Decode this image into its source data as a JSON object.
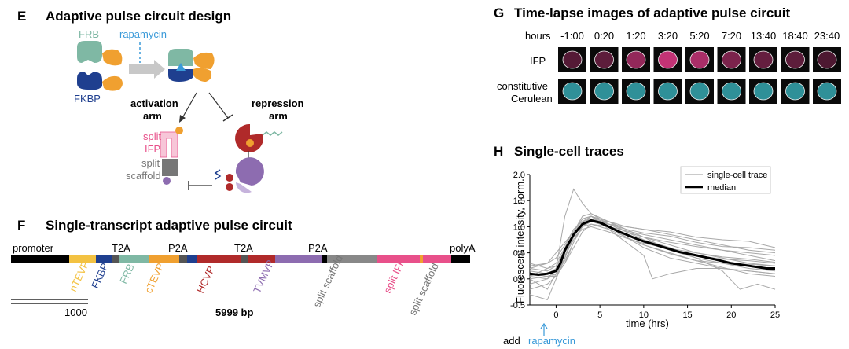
{
  "panelE": {
    "letter": "E",
    "title": "Adaptive pulse circuit design",
    "frb": "FRB",
    "fkbp": "FKBP",
    "rapamycin": "rapamycin",
    "activation_arm_1": "activation",
    "activation_arm_2": "arm",
    "repression_arm_1": "repression",
    "repression_arm_2": "arm",
    "split_ifp_1": "split",
    "split_ifp_2": "IFP",
    "split_scaffold_1": "split",
    "split_scaffold_2": "scaffold",
    "colors": {
      "frb": "#7fb8a4",
      "fkbp": "#1f3f8f",
      "rapamycin": "#3a9ad9",
      "tev": "#f0a030",
      "ifp": "#e8508a",
      "hcv": "#b02a2a",
      "tvmv": "#8d6cb0",
      "scaffold": "#777777"
    }
  },
  "panelF": {
    "letter": "F",
    "title": "Single-transcript adaptive pulse circuit",
    "promoter": "promoter",
    "polyA": "polyA",
    "t2a_1": "T2A",
    "p2a_1": "P2A",
    "t2a_2": "T2A",
    "p2a_2": "P2A",
    "labels": {
      "ntevp": "nTEVP",
      "fkbp": "FKBP",
      "frb": "FRB",
      "ctevp": "cTEVP",
      "hcvp": "HCVP",
      "tvmvp": "TVMVP",
      "split_scaffold_1": "split scaffold",
      "split_ifp": "split IFP",
      "split_scaffold_2": "split scaffold"
    },
    "scale_bar": "1000",
    "length": "5999 bp"
  },
  "panelG": {
    "letter": "G",
    "title": "Time-lapse images of adaptive pulse circuit",
    "hours_label": "hours",
    "timepoints": [
      "-1:00",
      "0:20",
      "1:20",
      "3:20",
      "5:20",
      "7:20",
      "13:40",
      "18:40",
      "23:40"
    ],
    "ifp_intensity": [
      0.2,
      0.25,
      0.6,
      0.9,
      0.75,
      0.45,
      0.3,
      0.25,
      0.15
    ],
    "row_ifp": "IFP",
    "row_cerulean_1": "constitutive",
    "row_cerulean_2": "Cerulean"
  },
  "panelH": {
    "letter": "H",
    "title": "Single-cell traces",
    "chart_data": {
      "type": "line",
      "title": "Single-cell traces",
      "xlabel": "time (hrs)",
      "ylabel": "Fluorescent intensity, norm.",
      "xlim": [
        -3,
        25
      ],
      "ylim": [
        -0.5,
        2.0
      ],
      "xticks": [
        "0",
        "5",
        "10",
        "15",
        "20",
        "25"
      ],
      "xtick_values": [
        0,
        5,
        10,
        15,
        20,
        25
      ],
      "yticks": [
        "-0.5",
        "0.0",
        "0.5",
        "1.0",
        "1.5",
        "2.0"
      ],
      "ytick_values": [
        -0.5,
        0.0,
        0.5,
        1.0,
        1.5,
        2.0
      ],
      "legend": {
        "trace": "single-cell trace",
        "median": "median",
        "placement": "top-right"
      },
      "annotation_1": "add",
      "annotation_2": "rapamycin",
      "median": {
        "x": [
          -3,
          -2,
          -1,
          0,
          0.5,
          1,
          2,
          3,
          4,
          5,
          6,
          7,
          8,
          9,
          10,
          12,
          14,
          16,
          18,
          20,
          22,
          24,
          25
        ],
        "y": [
          0.1,
          0.08,
          0.1,
          0.15,
          0.3,
          0.55,
          0.85,
          1.05,
          1.12,
          1.08,
          1.0,
          0.92,
          0.85,
          0.78,
          0.72,
          0.62,
          0.52,
          0.45,
          0.38,
          0.3,
          0.25,
          0.2,
          0.2
        ]
      },
      "traces": [
        {
          "x": [
            -3,
            -1,
            0,
            1,
            2,
            3,
            4,
            6,
            8,
            10,
            13,
            16,
            19,
            22,
            25
          ],
          "y": [
            0.05,
            0.0,
            0.2,
            1.2,
            1.72,
            1.45,
            1.25,
            1.05,
            0.9,
            0.8,
            0.65,
            0.5,
            0.4,
            0.3,
            0.25
          ]
        },
        {
          "x": [
            -3,
            -1,
            0,
            1,
            2,
            3,
            4,
            6,
            8,
            10,
            13,
            16,
            19,
            22,
            25
          ],
          "y": [
            0.2,
            0.3,
            0.5,
            0.7,
            0.9,
            1.05,
            1.1,
            1.0,
            0.92,
            0.85,
            0.75,
            0.65,
            0.55,
            0.45,
            0.35
          ]
        },
        {
          "x": [
            -3,
            -1,
            0,
            1,
            2,
            3,
            4,
            6,
            8,
            10,
            13,
            16,
            19,
            22,
            25
          ],
          "y": [
            -0.1,
            0.0,
            0.1,
            0.4,
            0.8,
            1.1,
            1.2,
            1.05,
            0.95,
            0.88,
            0.82,
            0.7,
            0.62,
            0.6,
            0.55
          ]
        },
        {
          "x": [
            -3,
            -1,
            0,
            1,
            2,
            3,
            4,
            6,
            8,
            10,
            13,
            16,
            19,
            22,
            25
          ],
          "y": [
            0.0,
            -0.2,
            0.1,
            0.3,
            0.7,
            1.0,
            1.15,
            1.0,
            0.8,
            0.6,
            0.4,
            0.3,
            0.2,
            0.15,
            0.1
          ]
        },
        {
          "x": [
            -3,
            -1,
            0,
            1,
            2,
            3,
            4,
            6,
            8,
            10,
            11,
            13,
            16,
            19,
            22,
            25
          ],
          "y": [
            0.1,
            0.1,
            0.2,
            0.5,
            0.9,
            1.15,
            1.2,
            0.95,
            0.7,
            0.45,
            0.0,
            0.1,
            0.2,
            0.2,
            0.15,
            0.1
          ]
        },
        {
          "x": [
            -3,
            -1,
            0,
            1,
            2,
            3,
            4,
            6,
            8,
            10,
            13,
            16,
            19,
            22,
            25
          ],
          "y": [
            0.3,
            0.2,
            0.3,
            0.6,
            0.95,
            1.1,
            1.12,
            1.1,
            1.0,
            0.95,
            0.9,
            0.8,
            0.75,
            0.72,
            0.6
          ]
        },
        {
          "x": [
            -3,
            -1,
            0,
            1,
            2,
            3,
            4,
            6,
            8,
            10,
            13,
            16,
            19,
            22,
            25
          ],
          "y": [
            0.1,
            0.05,
            0.05,
            0.3,
            0.6,
            0.9,
            1.05,
            1.0,
            0.85,
            0.7,
            0.55,
            0.45,
            0.38,
            0.35,
            0.3
          ]
        },
        {
          "x": [
            -3,
            -1,
            0,
            1,
            2,
            3,
            4,
            6,
            8,
            10,
            13,
            16,
            19,
            21,
            23,
            25
          ],
          "y": [
            -0.3,
            -0.4,
            0.0,
            0.4,
            0.9,
            1.2,
            1.25,
            1.1,
            0.9,
            0.75,
            0.6,
            0.4,
            0.15,
            -0.2,
            -0.1,
            -0.2
          ]
        },
        {
          "x": [
            -3,
            -1,
            0,
            1,
            2,
            3,
            4,
            6,
            8,
            10,
            13,
            16,
            19,
            22,
            25
          ],
          "y": [
            0.15,
            0.1,
            0.15,
            0.45,
            0.75,
            1.0,
            1.1,
            1.05,
            1.0,
            0.95,
            0.85,
            0.75,
            0.65,
            0.55,
            0.5
          ]
        },
        {
          "x": [
            -3,
            -1,
            0,
            1,
            2,
            3,
            4,
            6,
            8,
            10,
            13,
            16,
            19,
            22,
            25
          ],
          "y": [
            0.05,
            0.2,
            0.25,
            0.55,
            0.85,
            1.0,
            1.05,
            0.95,
            0.8,
            0.65,
            0.5,
            0.35,
            0.3,
            0.28,
            0.25
          ]
        },
        {
          "x": [
            -3,
            -1,
            0,
            1,
            2,
            3,
            4,
            6,
            8,
            10,
            13,
            16,
            19,
            22,
            25
          ],
          "y": [
            0.0,
            0.05,
            0.1,
            0.35,
            0.7,
            1.05,
            1.2,
            1.1,
            0.95,
            0.8,
            0.55,
            0.4,
            0.3,
            0.2,
            0.15
          ]
        },
        {
          "x": [
            -3,
            -1,
            0,
            1,
            2,
            3,
            4,
            6,
            8,
            10,
            13,
            16,
            19,
            22,
            25
          ],
          "y": [
            0.2,
            0.15,
            0.25,
            0.5,
            0.8,
            0.95,
            1.0,
            0.9,
            0.78,
            0.68,
            0.58,
            0.5,
            0.42,
            0.38,
            0.32
          ]
        },
        {
          "x": [
            -3,
            -1,
            0,
            1,
            2,
            3,
            4,
            6,
            8,
            10,
            13,
            16,
            19,
            22,
            25
          ],
          "y": [
            -0.2,
            -0.1,
            0.05,
            0.4,
            0.85,
            1.15,
            1.2,
            1.0,
            0.8,
            0.65,
            0.48,
            0.35,
            0.22,
            0.1,
            0.05
          ]
        },
        {
          "x": [
            -3,
            -1,
            0,
            1,
            2,
            3,
            4,
            6,
            8,
            10,
            13,
            16,
            19,
            22,
            25
          ],
          "y": [
            0.25,
            0.3,
            0.4,
            0.65,
            0.95,
            1.1,
            1.15,
            1.05,
            0.9,
            0.8,
            0.7,
            0.62,
            0.55,
            0.5,
            0.45
          ]
        }
      ]
    }
  }
}
